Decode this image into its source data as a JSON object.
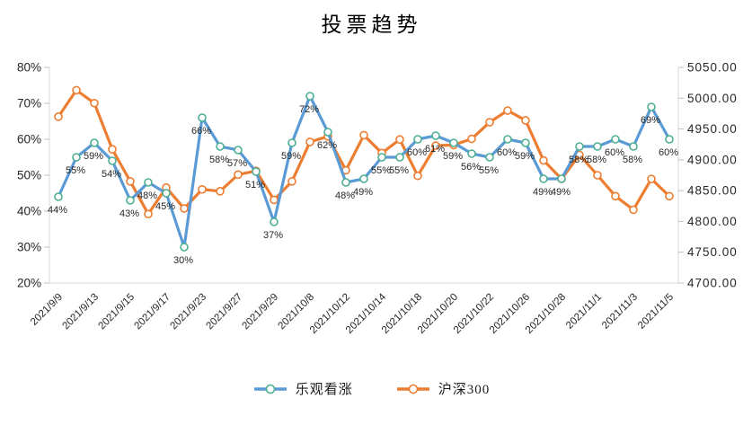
{
  "title": "投票趋势",
  "colors": {
    "optimistic_line": "#5B9BD5",
    "optimistic_marker_stroke": "#4CAF93",
    "hs300_line": "#ED7D31",
    "axis_line": "#D9D9D9",
    "tick_mark": "#BFBFBF",
    "label_text": "#262626"
  },
  "legend": {
    "items": [
      {
        "label": "乐观看涨",
        "line_color": "#5B9BD5",
        "marker_stroke": "#4CAF93"
      },
      {
        "label": "沪深300",
        "line_color": "#ED7D31",
        "marker_stroke": "#ED7D31"
      }
    ]
  },
  "chart_data": {
    "type": "line",
    "title": "投票趋势",
    "grid": false,
    "legend_position": "bottom",
    "x_tick_labels": [
      "2021/9/9",
      "2021/9/13",
      "2021/9/15",
      "2021/9/17",
      "2021/9/23",
      "2021/9/27",
      "2021/9/29",
      "2021/10/8",
      "2021/10/12",
      "2021/10/14",
      "2021/10/18",
      "2021/10/20",
      "2021/10/22",
      "2021/10/26",
      "2021/10/28",
      "2021/11/1",
      "2021/11/3",
      "2021/11/5"
    ],
    "x_label_every_n_points": 2,
    "num_points": 35,
    "left_axis": {
      "unit": "%",
      "min": 20,
      "max": 80,
      "ticks": [
        "80%",
        "70%",
        "60%",
        "50%",
        "40%",
        "30%",
        "20%"
      ]
    },
    "right_axis": {
      "min": 4700,
      "max": 5050,
      "ticks": [
        "5050.00",
        "5000.00",
        "4950.00",
        "4900.00",
        "4850.00",
        "4800.00",
        "4750.00",
        "4700.00"
      ]
    },
    "series": [
      {
        "name": "乐观看涨",
        "axis": "left",
        "color": "#5B9BD5",
        "marker_stroke": "#4CAF93",
        "data_labels_shown": true,
        "values": [
          44,
          55,
          59,
          54,
          43,
          48,
          45,
          30,
          66,
          58,
          57,
          51,
          37,
          59,
          72,
          62,
          48,
          49,
          55,
          55,
          60,
          61,
          59,
          56,
          55,
          60,
          59,
          49,
          49,
          58,
          58,
          60,
          58,
          69,
          60
        ]
      },
      {
        "name": "沪深300",
        "axis": "right",
        "color": "#ED7D31",
        "marker_stroke": "#ED7D31",
        "data_labels_shown": false,
        "values": [
          4970,
          5013,
          4992,
          4917,
          4865,
          4812,
          4855,
          4821,
          4852,
          4849,
          4876,
          4882,
          4835,
          4865,
          4929,
          4938,
          4883,
          4940,
          4911,
          4933,
          4874,
          4923,
          4924,
          4934,
          4961,
          4980,
          4964,
          4899,
          4869,
          4908,
          4875,
          4841,
          4819,
          4869,
          4841
        ]
      }
    ]
  }
}
